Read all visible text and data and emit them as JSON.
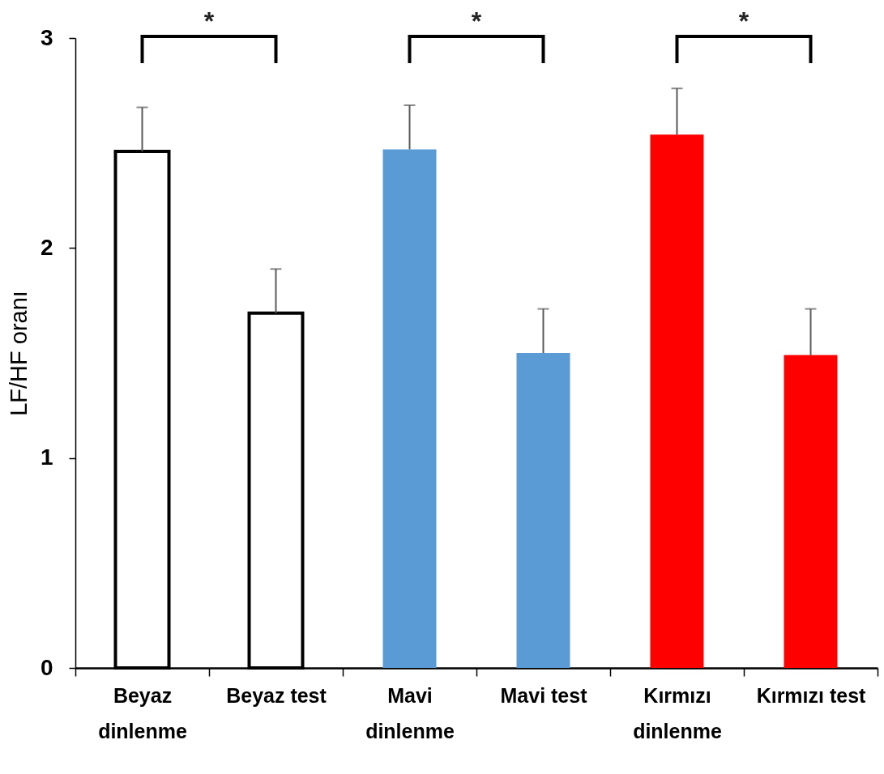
{
  "chart_data": {
    "type": "bar",
    "ylabel": "LF/HF oranı",
    "categories": [
      "Beyaz dinlenme",
      "Beyaz test",
      "Mavi dinlenme",
      "Mavi test",
      "Kırmızı dinlenme",
      "Kırmızı test"
    ],
    "values": [
      2.46,
      1.69,
      2.47,
      1.5,
      2.54,
      1.49
    ],
    "colors": [
      "#ffffff",
      "#ffffff",
      "#5b9bd5",
      "#5b9bd5",
      "#ff0000",
      "#ff0000"
    ],
    "errors": [
      [
        2.46,
        2.67
      ],
      [
        1.69,
        1.9
      ],
      [
        2.47,
        2.68
      ],
      [
        1.5,
        1.71
      ],
      [
        2.54,
        2.76
      ],
      [
        1.49,
        1.71
      ]
    ],
    "ylim": [
      0,
      3
    ],
    "yticks": [
      0,
      1,
      2,
      3
    ],
    "annotations": [
      "*",
      "*",
      "*"
    ]
  }
}
